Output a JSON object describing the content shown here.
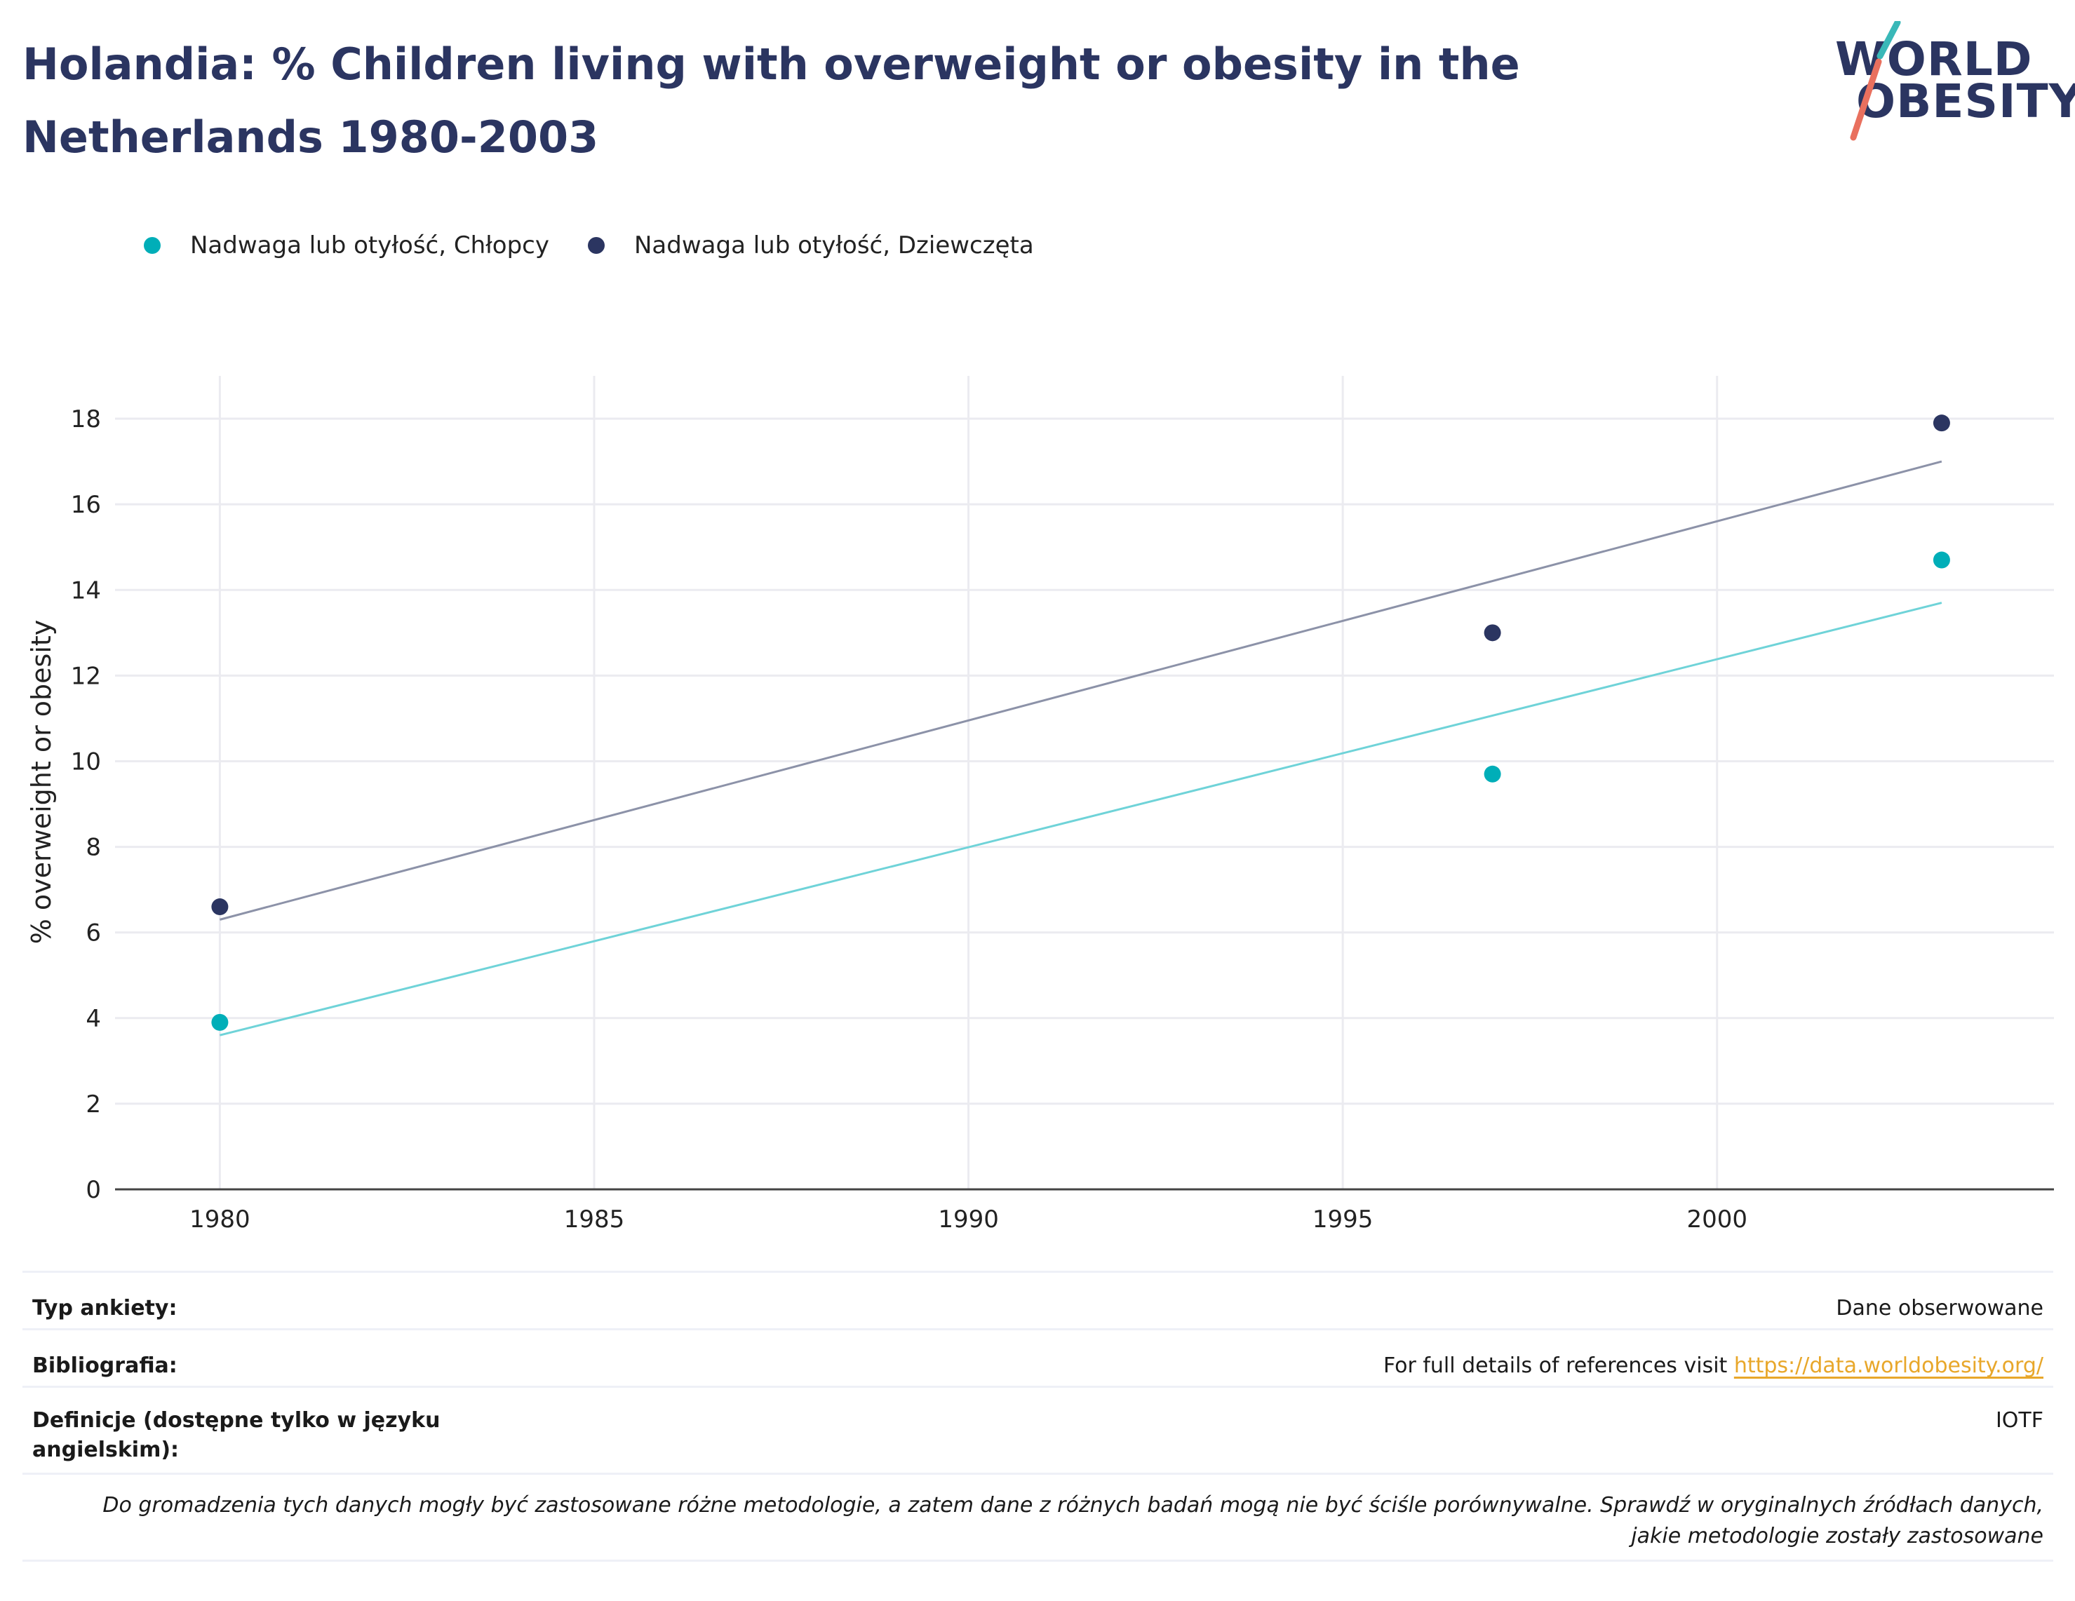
{
  "title": "Holandia: % Children living with overweight or obesity in the Netherlands 1980-2003",
  "logo": {
    "line1": "WORLD",
    "line2": "OBESITY"
  },
  "colors": {
    "boys": "#00aeb8",
    "girls": "#2b3561",
    "boys_trend": "#6fd3d8",
    "girls_trend": "#8c92a8",
    "title": "#2b3561",
    "link": "#e8a72a"
  },
  "legend": [
    {
      "label": "Nadwaga lub otyłość, Chłopcy"
    },
    {
      "label": "Nadwaga lub otyłość, Dziewczęta"
    }
  ],
  "chart_data": {
    "type": "scatter",
    "xlabel": "",
    "ylabel": "% overweight or obesity",
    "xlim": [
      1978.6,
      2004.5
    ],
    "ylim": [
      0,
      19
    ],
    "xticks": [
      1980,
      1985,
      1990,
      1995,
      2000
    ],
    "yticks": [
      0,
      2,
      4,
      6,
      8,
      10,
      12,
      14,
      16,
      18
    ],
    "grid": true,
    "legend_position": "top-left",
    "series": [
      {
        "name": "Nadwaga lub otyłość, Chłopcy",
        "x": [
          1980,
          1997,
          2003
        ],
        "y": [
          3.9,
          9.7,
          14.7
        ],
        "trendline": {
          "x": [
            1980,
            2003
          ],
          "y": [
            3.6,
            13.7
          ]
        }
      },
      {
        "name": "Nadwaga lub otyłość, Dziewczęta",
        "x": [
          1980,
          1997,
          2003
        ],
        "y": [
          6.6,
          13.0,
          17.9
        ],
        "trendline": {
          "x": [
            1980,
            2003
          ],
          "y": [
            6.3,
            17.0
          ]
        }
      }
    ]
  },
  "info": {
    "survey_type_label": "Typ ankiety:",
    "survey_type_value": "Dane obserwowane",
    "bibliography_label": "Bibliografia:",
    "bibliography_text": "For full details of references visit ",
    "bibliography_link": "https://data.worldobesity.org/",
    "definitions_label": "Definicje (dostępne tylko w języku angielskim):",
    "definitions_value": "IOTF",
    "note": "Do gromadzenia tych danych mogły być zastosowane różne metodologie, a zatem dane z różnych badań mogą nie być ściśle porównywalne. Sprawdź w oryginalnych źródłach danych, jakie metodologie zostały zastosowane"
  }
}
